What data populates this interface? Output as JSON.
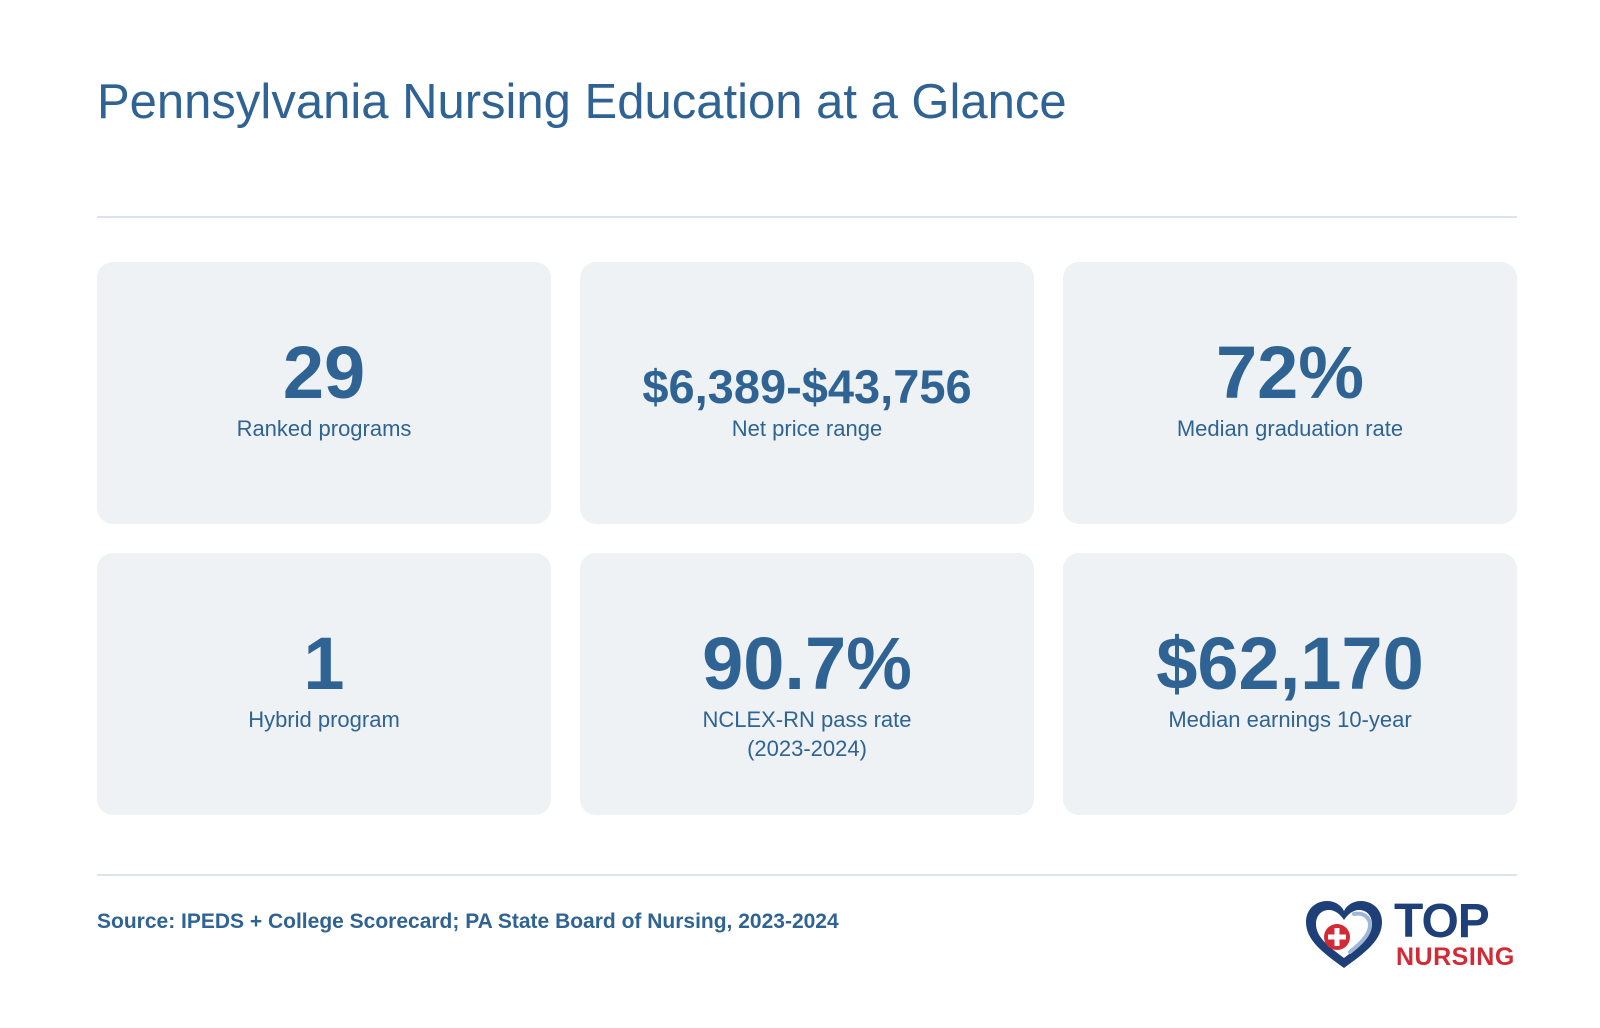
{
  "header": {
    "title": "Pennsylvania Nursing Education at a Glance"
  },
  "stats": [
    {
      "value": "29",
      "label": [
        "Ranked programs"
      ]
    },
    {
      "value": "$6,389-$43,756",
      "label": [
        "Net price range"
      ]
    },
    {
      "value": "72%",
      "label": [
        "Median graduation rate"
      ]
    },
    {
      "value": "1",
      "label": [
        "Hybrid program"
      ]
    },
    {
      "value": "90.7%",
      "label": [
        "NCLEX-RN pass rate",
        "(2023-2024)"
      ]
    },
    {
      "value": "$62,170",
      "label": [
        "Median earnings 10-year"
      ]
    }
  ],
  "footer": {
    "source": "Source: IPEDS + College Scorecard; PA State Board of Nursing, 2023-2024"
  },
  "logo": {
    "line1": "TOP",
    "line2": "NURSING",
    "icon": "heart-cross-icon",
    "colors": {
      "navy": "#1f3f78",
      "red": "#d42a36"
    }
  },
  "colors": {
    "accent": "#2f6393",
    "card_bg": "#eef2f5",
    "rule": "#dbe4ec"
  }
}
